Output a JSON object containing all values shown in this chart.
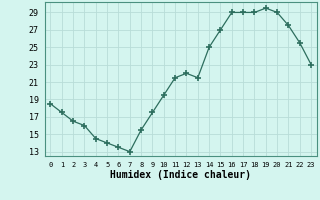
{
  "x": [
    0,
    1,
    2,
    3,
    4,
    5,
    6,
    7,
    8,
    9,
    10,
    11,
    12,
    13,
    14,
    15,
    16,
    17,
    18,
    19,
    20,
    21,
    22,
    23
  ],
  "y": [
    18.5,
    17.5,
    16.5,
    16.0,
    14.5,
    14.0,
    13.5,
    13.0,
    15.5,
    17.5,
    19.5,
    21.5,
    22.0,
    21.5,
    25.0,
    27.0,
    29.0,
    29.0,
    29.0,
    29.5,
    29.0,
    27.5,
    25.5,
    23.0
  ],
  "xlabel": "Humidex (Indice chaleur)",
  "ylim": [
    12.5,
    30.2
  ],
  "xlim": [
    -0.5,
    23.5
  ],
  "yticks": [
    13,
    15,
    17,
    19,
    21,
    23,
    25,
    27,
    29
  ],
  "xticks": [
    0,
    1,
    2,
    3,
    4,
    5,
    6,
    7,
    8,
    9,
    10,
    11,
    12,
    13,
    14,
    15,
    16,
    17,
    18,
    19,
    20,
    21,
    22,
    23
  ],
  "line_color": "#2d6e5e",
  "marker": "+",
  "marker_size": 4,
  "bg_color": "#d4f5ef",
  "grid_color": "#b8ddd8",
  "spine_color": "#4a9080"
}
